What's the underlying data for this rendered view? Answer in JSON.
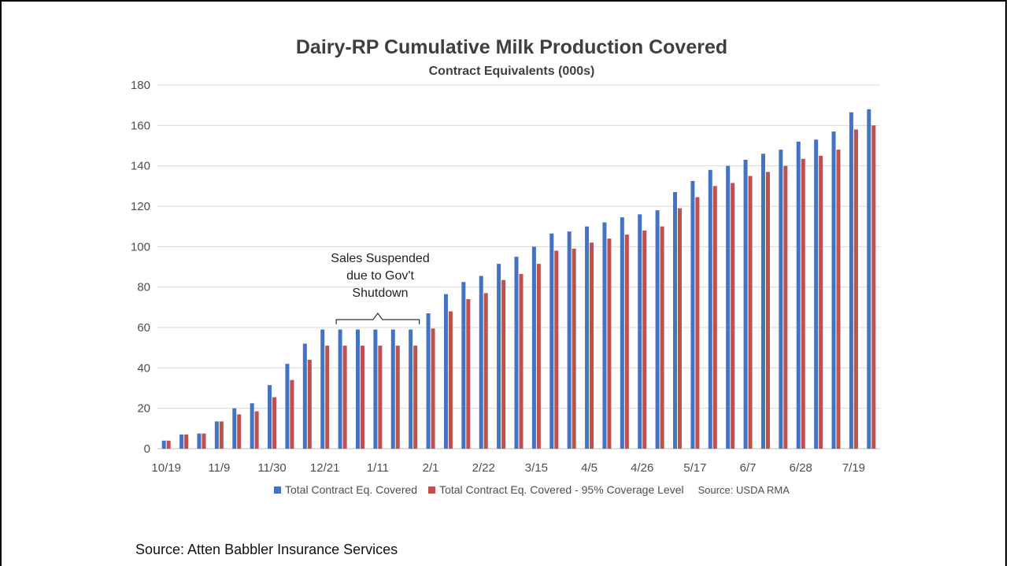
{
  "chart_data": {
    "type": "bar",
    "title": "Dairy-RP Cumulative Milk Production Covered",
    "subtitle": "Contract Equivalents (000s)",
    "xlabel": "",
    "ylabel": "",
    "ylim": [
      0,
      180
    ],
    "yticks": [
      0,
      20,
      40,
      60,
      80,
      100,
      120,
      140,
      160,
      180
    ],
    "x_tick_labels": [
      "10/19",
      "11/9",
      "11/30",
      "12/21",
      "1/11",
      "2/1",
      "2/22",
      "3/15",
      "4/5",
      "4/26",
      "5/17",
      "6/7",
      "6/28",
      "7/19"
    ],
    "x_tick_every": 3,
    "grid": true,
    "legend_position": "bottom",
    "series": [
      {
        "name": "Total Contract Eq. Covered",
        "color": "#4472c4",
        "values": [
          4,
          7,
          7.5,
          13.5,
          20,
          22.5,
          31.5,
          42,
          52,
          59,
          59,
          59,
          59,
          59,
          59,
          67,
          76.5,
          82.5,
          85.5,
          91.5,
          95,
          100,
          106.5,
          107.5,
          110,
          112,
          114.5,
          116,
          118,
          127,
          132.5,
          138,
          140,
          143,
          146,
          148,
          152,
          153,
          157,
          166.5,
          168
        ]
      },
      {
        "name": "Total Contract Eq. Covered - 95% Coverage Level",
        "color": "#c0504d",
        "values": [
          4,
          7,
          7.5,
          13.5,
          17,
          18.5,
          25.5,
          34,
          44,
          51,
          51,
          51,
          51,
          51,
          51,
          59.5,
          68,
          74,
          77,
          83.5,
          86.5,
          91.5,
          98,
          99,
          102,
          104,
          106,
          108,
          110,
          119,
          124.5,
          130,
          131.5,
          135,
          137,
          140,
          143.5,
          145,
          148,
          158,
          160
        ]
      }
    ],
    "annotations": [
      {
        "text_lines": [
          "Sales Suspended",
          "due to Gov't",
          "Shutdown"
        ],
        "from_index": 10,
        "to_index": 15
      }
    ],
    "legend_source": "Source: USDA RMA"
  },
  "footer": {
    "source": "Source: Atten Babbler Insurance Services"
  }
}
